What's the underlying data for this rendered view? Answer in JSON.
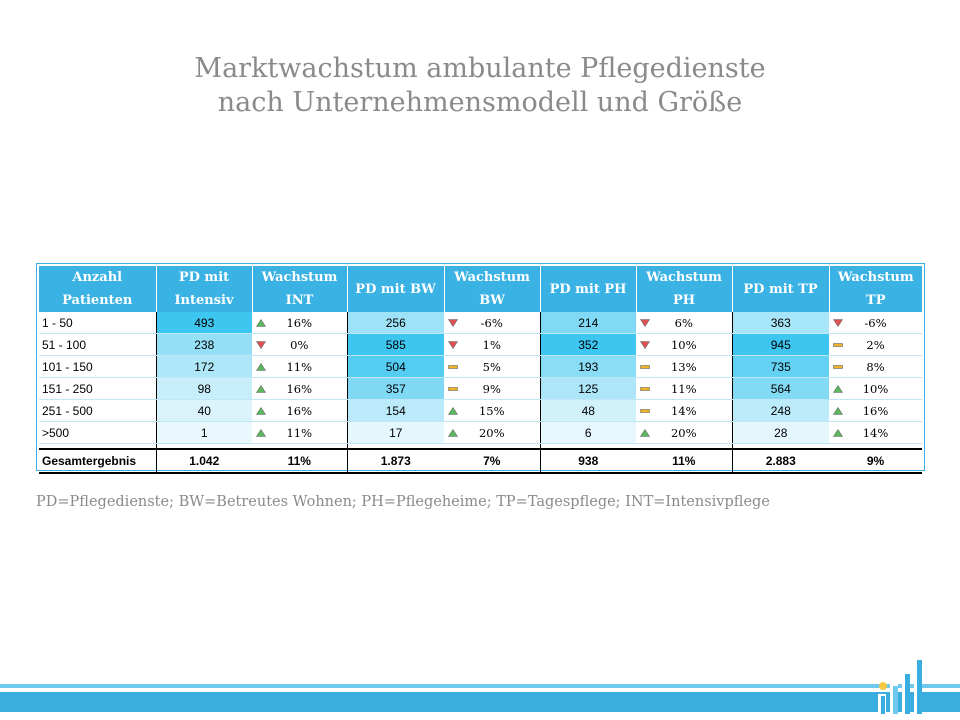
{
  "title": {
    "line1": "Marktwachstum ambulante Pflegedienste",
    "line2": "nach Unternehmensmodell und Größe"
  },
  "colors": {
    "header": "#3ab2e4",
    "up": "#5cb85c",
    "down": "#e05252",
    "flat": "#f0b429",
    "heat_high": "#3cc6f0",
    "heat_low": "#e9f8fd"
  },
  "table": {
    "headers": [
      {
        "l1": "Anzahl",
        "l2": "Patienten"
      },
      {
        "l1": "PD mit",
        "l2": "Intensiv"
      },
      {
        "l1": "Wachstum",
        "l2": "INT"
      },
      {
        "l1": "PD mit BW",
        "l2": ""
      },
      {
        "l1": "Wachstum",
        "l2": "BW"
      },
      {
        "l1": "PD mit PH",
        "l2": ""
      },
      {
        "l1": "Wachstum",
        "l2": "PH"
      },
      {
        "l1": "PD mit TP",
        "l2": ""
      },
      {
        "l1": "Wachstum",
        "l2": "TP"
      }
    ],
    "rows": [
      {
        "label": "1 - 50",
        "int": "493",
        "int_g": "16%",
        "int_t": "up",
        "bw": "256",
        "bw_g": "-6%",
        "bw_t": "down",
        "ph": "214",
        "ph_g": "6%",
        "ph_t": "down",
        "tp": "363",
        "tp_g": "-6%",
        "tp_t": "down"
      },
      {
        "label": "51 - 100",
        "int": "238",
        "int_g": "0%",
        "int_t": "down",
        "bw": "585",
        "bw_g": "1%",
        "bw_t": "down",
        "ph": "352",
        "ph_g": "10%",
        "ph_t": "down",
        "tp": "945",
        "tp_g": "2%",
        "tp_t": "flat"
      },
      {
        "label": "101 - 150",
        "int": "172",
        "int_g": "11%",
        "int_t": "up",
        "bw": "504",
        "bw_g": "5%",
        "bw_t": "flat",
        "ph": "193",
        "ph_g": "13%",
        "ph_t": "flat",
        "tp": "735",
        "tp_g": "8%",
        "tp_t": "flat"
      },
      {
        "label": "151 - 250",
        "int": "98",
        "int_g": "16%",
        "int_t": "up",
        "bw": "357",
        "bw_g": "9%",
        "bw_t": "flat",
        "ph": "125",
        "ph_g": "11%",
        "ph_t": "flat",
        "tp": "564",
        "tp_g": "10%",
        "tp_t": "up"
      },
      {
        "label": "251 -  500",
        "int": "40",
        "int_g": "16%",
        "int_t": "up",
        "bw": "154",
        "bw_g": "15%",
        "bw_t": "up",
        "ph": "48",
        "ph_g": "14%",
        "ph_t": "flat",
        "tp": "248",
        "tp_g": "16%",
        "tp_t": "up"
      },
      {
        "label": ">500",
        "int": "1",
        "int_g": "11%",
        "int_t": "up",
        "bw": "17",
        "bw_g": "20%",
        "bw_t": "up",
        "ph": "6",
        "ph_g": "20%",
        "ph_t": "up",
        "tp": "28",
        "tp_g": "14%",
        "tp_t": "up"
      }
    ],
    "total": {
      "label": "Gesamtergebnis",
      "int": "1.042",
      "int_g": "11%",
      "bw": "1.873",
      "bw_g": "7%",
      "ph": "938",
      "ph_g": "11%",
      "tp": "2.883",
      "tp_g": "9%"
    }
  },
  "legend": "PD=Pflegedienste; BW=Betreutes Wohnen; PH=Pflegeheime; TP=Tagespflege; INT=Intensivpflege"
}
